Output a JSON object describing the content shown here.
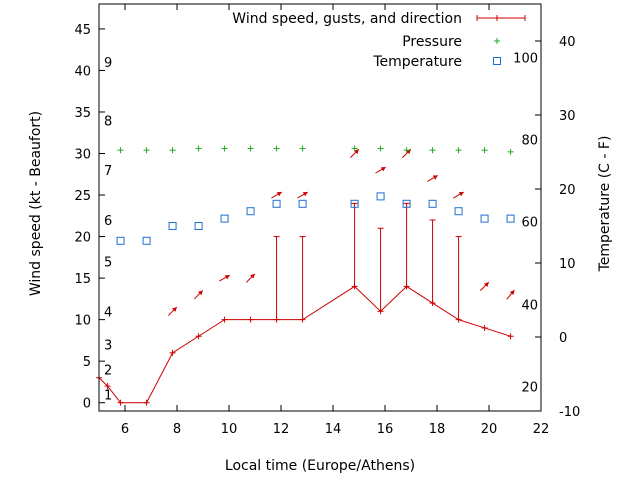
{
  "chart_data": {
    "type": "line",
    "xlabel": "Local time (Europe/Athens)",
    "ylabel_left": "Wind speed (kt - Beaufort)",
    "ylabel_right": "Temperature (C - F)",
    "xlim": [
      5,
      22
    ],
    "ylim_left": [
      -1,
      48
    ],
    "ylim_right": [
      -10,
      45
    ],
    "x_ticks": [
      6,
      8,
      10,
      12,
      14,
      16,
      18,
      20,
      22
    ],
    "y_ticks_left": [
      0,
      5,
      10,
      15,
      20,
      25,
      30,
      35,
      40,
      45
    ],
    "y_ticks_right": [
      -10,
      0,
      10,
      20,
      30,
      40
    ],
    "beaufort_labels": [
      {
        "label": "1",
        "kt": 1
      },
      {
        "label": "2",
        "kt": 4
      },
      {
        "label": "3",
        "kt": 7
      },
      {
        "label": "4",
        "kt": 11
      },
      {
        "label": "5",
        "kt": 17
      },
      {
        "label": "6",
        "kt": 22
      },
      {
        "label": "7",
        "kt": 28
      },
      {
        "label": "8",
        "kt": 34
      },
      {
        "label": "9",
        "kt": 41
      }
    ],
    "fahrenheit_labels": [
      {
        "label": "20",
        "c": -6.7
      },
      {
        "label": "40",
        "c": 4.4
      },
      {
        "label": "60",
        "c": 15.6
      },
      {
        "label": "80",
        "c": 26.7
      },
      {
        "label": "100",
        "c": 37.8
      }
    ],
    "legend": [
      {
        "label": "Wind speed, gusts, and direction",
        "color": "#cc0000",
        "marker": "line-plus"
      },
      {
        "label": "Pressure",
        "color": "#22aa22",
        "marker": "plus"
      },
      {
        "label": "Temperature",
        "color": "#1f6fd0",
        "marker": "square"
      }
    ],
    "wind": {
      "color": "#cc0000",
      "x": [
        5,
        5.33,
        5.83,
        6.83,
        7.83,
        8.83,
        9.83,
        10.83,
        11.83,
        12.83,
        14.83,
        15.83,
        16.83,
        17.83,
        18.83,
        19.83,
        20.83
      ],
      "speed": [
        3,
        2,
        0,
        0,
        6,
        8,
        10,
        10,
        10,
        10,
        14,
        11,
        14,
        12,
        10,
        9,
        8
      ],
      "gust": [
        null,
        null,
        null,
        null,
        null,
        null,
        null,
        null,
        20,
        20,
        24,
        21,
        24,
        22,
        20,
        null,
        null
      ]
    },
    "wind_direction_arrows": {
      "color": "#cc0000",
      "x": [
        7.83,
        8.83,
        9.83,
        10.83,
        11.83,
        12.83,
        14.83,
        15.83,
        16.83,
        17.83,
        18.83,
        19.83,
        20.83
      ],
      "kt": [
        11,
        13,
        15,
        15,
        25,
        25,
        30,
        28,
        30,
        27,
        25,
        14,
        13
      ],
      "direction_deg": [
        225,
        225,
        240,
        225,
        240,
        240,
        225,
        240,
        225,
        240,
        240,
        225,
        220
      ]
    },
    "pressure": {
      "color": "#22aa22",
      "x": [
        5.83,
        6.83,
        7.83,
        8.83,
        9.83,
        10.83,
        11.83,
        12.83,
        14.83,
        15.83,
        16.83,
        17.83,
        18.83,
        19.83,
        20.83
      ],
      "y_kt_axis": [
        30.4,
        30.4,
        30.4,
        30.6,
        30.6,
        30.6,
        30.6,
        30.6,
        30.6,
        30.6,
        30.4,
        30.4,
        30.4,
        30.4,
        30.2
      ]
    },
    "temperature": {
      "color": "#1f6fd0",
      "x": [
        5.83,
        6.83,
        7.83,
        8.83,
        9.83,
        10.83,
        11.83,
        12.83,
        14.83,
        15.83,
        16.83,
        17.83,
        18.83,
        19.83,
        20.83
      ],
      "celsius": [
        13,
        13,
        15,
        15,
        16,
        17,
        18,
        18,
        18,
        19,
        18,
        18,
        17,
        16,
        16
      ]
    }
  }
}
